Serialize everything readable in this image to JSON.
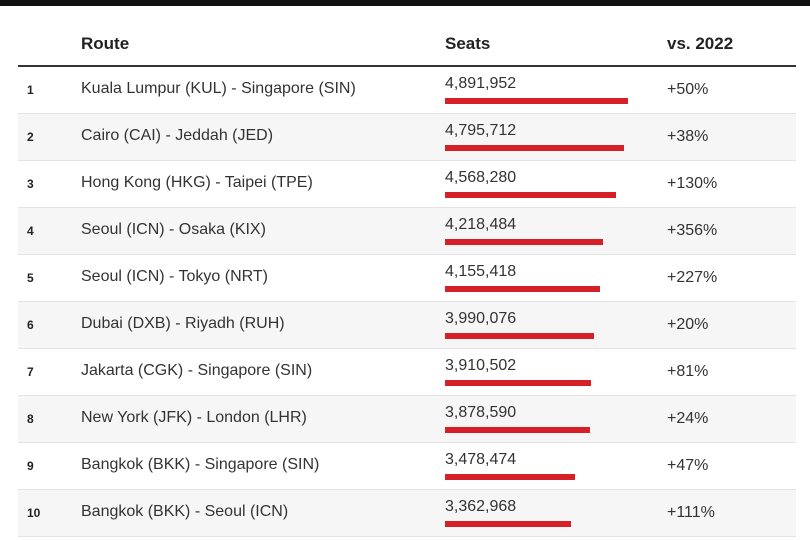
{
  "chart_data": {
    "type": "table",
    "columns": [
      "",
      "Route",
      "Seats",
      "vs. 2022"
    ],
    "rows": [
      {
        "rank": "1",
        "route": "Kuala Lumpur (KUL) - Singapore (SIN)",
        "seats_label": "4,891,952",
        "seats": 4891952,
        "change": "+50%"
      },
      {
        "rank": "2",
        "route": "Cairo (CAI) - Jeddah (JED)",
        "seats_label": "4,795,712",
        "seats": 4795712,
        "change": "+38%"
      },
      {
        "rank": "3",
        "route": "Hong Kong (HKG) - Taipei (TPE)",
        "seats_label": "4,568,280",
        "seats": 4568280,
        "change": "+130%"
      },
      {
        "rank": "4",
        "route": "Seoul (ICN) - Osaka (KIX)",
        "seats_label": "4,218,484",
        "seats": 4218484,
        "change": "+356%"
      },
      {
        "rank": "5",
        "route": "Seoul (ICN) - Tokyo (NRT)",
        "seats_label": "4,155,418",
        "seats": 4155418,
        "change": "+227%"
      },
      {
        "rank": "6",
        "route": "Dubai (DXB) - Riyadh (RUH)",
        "seats_label": "3,990,076",
        "seats": 3990076,
        "change": "+20%"
      },
      {
        "rank": "7",
        "route": "Jakarta (CGK) - Singapore (SIN)",
        "seats_label": "3,910,502",
        "seats": 3910502,
        "change": "+81%"
      },
      {
        "rank": "8",
        "route": "New York (JFK) - London (LHR)",
        "seats_label": "3,878,590",
        "seats": 3878590,
        "change": "+24%"
      },
      {
        "rank": "9",
        "route": "Bangkok (BKK) - Singapore (SIN)",
        "seats_label": "3,478,474",
        "seats": 3478474,
        "change": "+47%"
      },
      {
        "rank": "10",
        "route": "Bangkok (BKK) - Seoul (ICN)",
        "seats_label": "3,362,968",
        "seats": 3362968,
        "change": "+111%"
      }
    ],
    "bar_color": "#d62027"
  }
}
